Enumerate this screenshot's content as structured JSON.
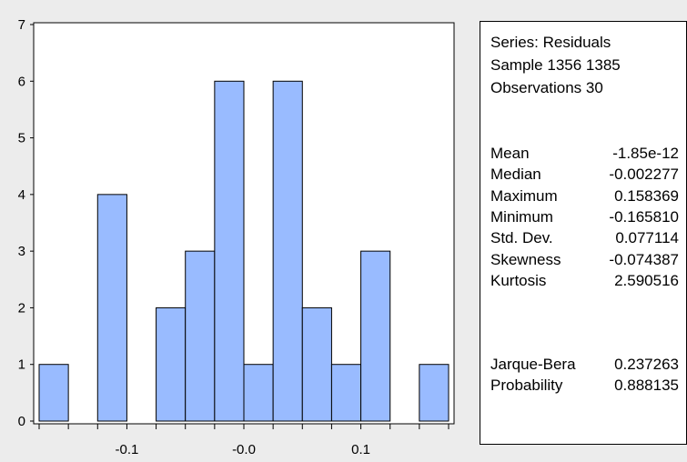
{
  "chart_data": {
    "type": "histogram",
    "title": "",
    "xlabel": "",
    "ylabel": "",
    "bin_width": 0.025,
    "xlim": [
      -0.175,
      0.175
    ],
    "ylim": [
      0,
      7
    ],
    "bins": [
      {
        "start": -0.175,
        "end": -0.15,
        "count": 1
      },
      {
        "start": -0.15,
        "end": -0.125,
        "count": 0
      },
      {
        "start": -0.125,
        "end": -0.1,
        "count": 4
      },
      {
        "start": -0.1,
        "end": -0.075,
        "count": 0
      },
      {
        "start": -0.075,
        "end": -0.05,
        "count": 2
      },
      {
        "start": -0.05,
        "end": -0.025,
        "count": 3
      },
      {
        "start": -0.025,
        "end": 0.0,
        "count": 6
      },
      {
        "start": 0.0,
        "end": 0.025,
        "count": 1
      },
      {
        "start": 0.025,
        "end": 0.05,
        "count": 6
      },
      {
        "start": 0.05,
        "end": 0.075,
        "count": 2
      },
      {
        "start": 0.075,
        "end": 0.1,
        "count": 1
      },
      {
        "start": 0.1,
        "end": 0.125,
        "count": 3
      },
      {
        "start": 0.125,
        "end": 0.15,
        "count": 0
      },
      {
        "start": 0.15,
        "end": 0.175,
        "count": 1
      }
    ],
    "y_ticks": [
      "0",
      "1",
      "2",
      "3",
      "4",
      "5",
      "6",
      "7"
    ],
    "x_tick_labels": [
      {
        "value": -0.1,
        "label": "-0.1"
      },
      {
        "value": 0.0,
        "label": "-0.0"
      },
      {
        "value": 0.1,
        "label": "0.1"
      }
    ],
    "x_minor_ticks": [
      -0.175,
      -0.15,
      -0.125,
      -0.1,
      -0.075,
      -0.05,
      -0.025,
      0.0,
      0.025,
      0.05,
      0.075,
      0.1,
      0.125,
      0.15,
      0.175
    ],
    "grid": false,
    "legend": "none",
    "colors": {
      "bar_fill": "#99bbff",
      "bar_stroke": "#000000",
      "background": "#ececec",
      "plot_bg": "#ffffff"
    }
  },
  "stats": {
    "series": "Series: Residuals",
    "sample": "Sample 1356 1385",
    "observations": "Observations 30",
    "rows": [
      {
        "label": "Mean",
        "value": "-1.85e-12"
      },
      {
        "label": "Median",
        "value": "-0.002277"
      },
      {
        "label": "Maximum",
        "value": "0.158369"
      },
      {
        "label": "Minimum",
        "value": "-0.165810"
      },
      {
        "label": "Std. Dev.",
        "value": "0.077114"
      },
      {
        "label": "Skewness",
        "value": "-0.074387"
      },
      {
        "label": "Kurtosis",
        "value": "2.590516"
      }
    ],
    "test_rows": [
      {
        "label": "Jarque-Bera",
        "value": "0.237263"
      },
      {
        "label": "Probability",
        "value": "0.888135"
      }
    ]
  }
}
